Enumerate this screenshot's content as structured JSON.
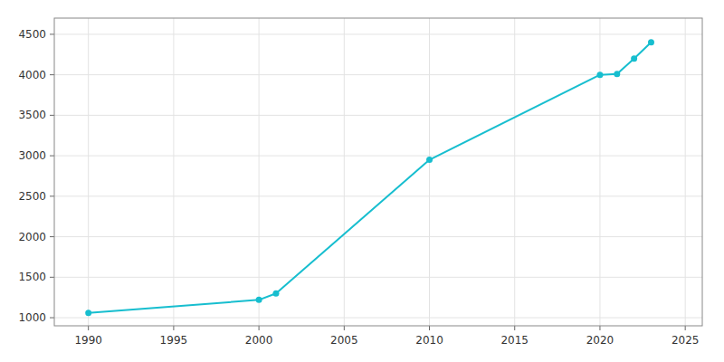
{
  "chart_data": {
    "type": "line",
    "x": [
      1990,
      2000,
      2001,
      2010,
      2020,
      2021,
      2022,
      2023
    ],
    "values": [
      1060,
      1220,
      1300,
      2950,
      4000,
      4010,
      4200,
      4400
    ],
    "color": "#17becf",
    "marker": "circle",
    "xlim": [
      1988,
      2026
    ],
    "ylim": [
      900,
      4700
    ],
    "xticks": [
      1990,
      1995,
      2000,
      2005,
      2010,
      2015,
      2020,
      2025
    ],
    "yticks": [
      1000,
      1500,
      2000,
      2500,
      3000,
      3500,
      4000,
      4500
    ],
    "grid": true
  }
}
